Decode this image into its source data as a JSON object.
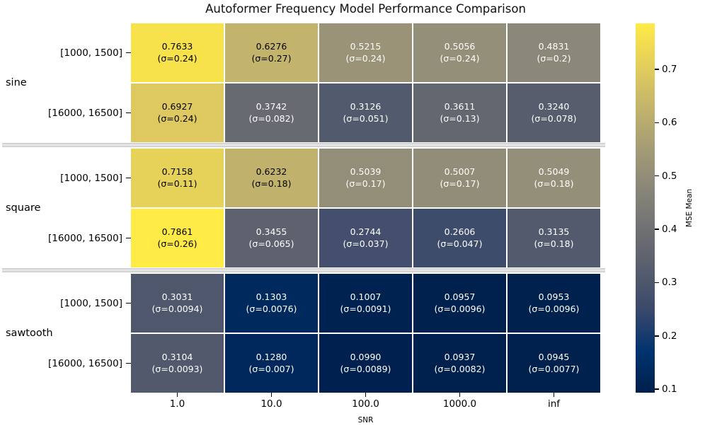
{
  "chart_data": {
    "type": "heatmap",
    "title": "Autoformer Frequency Model Performance Comparison",
    "xlabel": "SNR",
    "columns": [
      "1.0",
      "10.0",
      "100.0",
      "1000.0",
      "inf"
    ],
    "group_labels": [
      "sine",
      "square",
      "sawtooth"
    ],
    "rows": [
      {
        "group": "sine",
        "range": "[1000, 1500]",
        "mse": [
          "0.7633",
          "0.6276",
          "0.5215",
          "0.5056",
          "0.4831"
        ],
        "sigma_labels": [
          "(σ=0.24)",
          "(σ=0.27)",
          "(σ=0.24)",
          "(σ=0.24)",
          "(σ=0.2)"
        ]
      },
      {
        "group": "sine",
        "range": "[16000, 16500]",
        "mse": [
          "0.6927",
          "0.3742",
          "0.3126",
          "0.3611",
          "0.3240"
        ],
        "sigma_labels": [
          "(σ=0.24)",
          "(σ=0.082)",
          "(σ=0.051)",
          "(σ=0.13)",
          "(σ=0.078)"
        ]
      },
      {
        "group": "square",
        "range": "[1000, 1500]",
        "mse": [
          "0.7158",
          "0.6232",
          "0.5039",
          "0.5007",
          "0.5049"
        ],
        "sigma_labels": [
          "(σ=0.11)",
          "(σ=0.18)",
          "(σ=0.17)",
          "(σ=0.17)",
          "(σ=0.18)"
        ]
      },
      {
        "group": "square",
        "range": "[16000, 16500]",
        "mse": [
          "0.7861",
          "0.3455",
          "0.2744",
          "0.2606",
          "0.3135"
        ],
        "sigma_labels": [
          "(σ=0.26)",
          "(σ=0.065)",
          "(σ=0.037)",
          "(σ=0.047)",
          "(σ=0.18)"
        ]
      },
      {
        "group": "sawtooth",
        "range": "[1000, 1500]",
        "mse": [
          "0.3031",
          "0.1303",
          "0.1007",
          "0.0957",
          "0.0953"
        ],
        "sigma_labels": [
          "(σ=0.0094)",
          "(σ=0.0076)",
          "(σ=0.0091)",
          "(σ=0.0096)",
          "(σ=0.0096)"
        ]
      },
      {
        "group": "sawtooth",
        "range": "[16000, 16500]",
        "mse": [
          "0.3104",
          "0.1280",
          "0.0990",
          "0.0937",
          "0.0945"
        ],
        "sigma_labels": [
          "(σ=0.0093)",
          "(σ=0.007)",
          "(σ=0.0089)",
          "(σ=0.0082)",
          "(σ=0.0077)"
        ]
      }
    ],
    "colorbar": {
      "label": "MSE Mean",
      "ticks": [
        "0.7",
        "0.6",
        "0.5",
        "0.4",
        "0.3",
        "0.2",
        "0.1"
      ],
      "vmin": 0.0937,
      "vmax": 0.7861,
      "colormap": "cividis"
    },
    "colors": {
      "colormap_low": "#00204D",
      "colormap_high": "#FFEA46",
      "gridline": "#ffffff",
      "separator": "#d9d9d9",
      "annotation_dark": "#000000",
      "annotation_light": "#ffffff"
    }
  }
}
